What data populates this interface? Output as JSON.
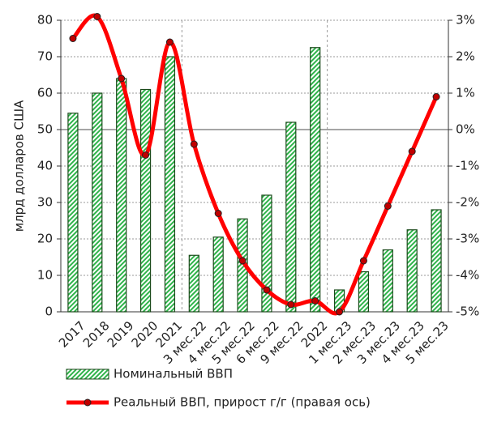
{
  "chart_data": {
    "type": "bar-line",
    "y_label": "млрд долларов США",
    "categories": [
      "2017",
      "2018",
      "2019",
      "2020",
      "2021",
      "3 мес.22",
      "4 мес.22",
      "5 мес.22",
      "6 мес.22",
      "9 мес.22",
      "2022",
      "1 мес.23",
      "2 мес.23",
      "3 мес.23",
      "4 мес.23",
      "5 мес.23"
    ],
    "series": [
      {
        "name": "Номинальный ВВП",
        "type": "bar",
        "color": "#1a9a3a",
        "values": [
          54.5,
          60,
          64,
          61,
          70,
          15.5,
          20.5,
          25.5,
          32,
          52,
          72.5,
          6,
          11,
          17,
          22.5,
          28
        ]
      },
      {
        "name": "Реальный ВВП, прирост г/г (правая ось)",
        "type": "line",
        "axis": "y2",
        "color": "#ff0000",
        "values": [
          2.5,
          3.1,
          1.4,
          -0.7,
          2.4,
          -0.4,
          -2.3,
          -3.6,
          -4.4,
          -4.8,
          -4.7,
          -5.0,
          -3.6,
          -2.1,
          -0.6,
          0.9
        ]
      }
    ],
    "ylim": [
      0,
      80
    ],
    "yticks": [
      0,
      10,
      20,
      30,
      40,
      50,
      60,
      70,
      80
    ],
    "y2lim": [
      -5,
      3
    ],
    "y2ticks": [
      {
        "value": -5,
        "label": "-5%"
      },
      {
        "value": -4,
        "label": "-4%"
      },
      {
        "value": -3,
        "label": "-3%"
      },
      {
        "value": -2,
        "label": "-2%"
      },
      {
        "value": -1,
        "label": "-1%"
      },
      {
        "value": 0,
        "label": "0%"
      },
      {
        "value": 1,
        "label": "1%"
      },
      {
        "value": 2,
        "label": "2%"
      },
      {
        "value": 3,
        "label": "3%"
      }
    ],
    "grid": true
  }
}
